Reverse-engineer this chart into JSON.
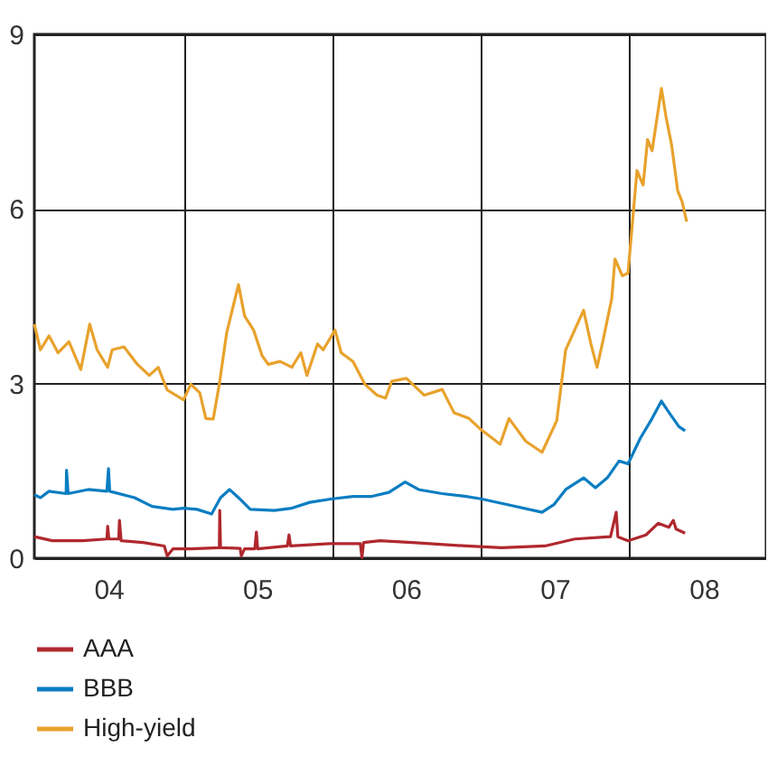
{
  "chart_data": {
    "type": "line",
    "xlim": [
      "2004-01-01",
      "2008-12-01"
    ],
    "xticks": [
      {
        "value": "2004-07-01",
        "label": "04"
      },
      {
        "value": "2005-01-01",
        "label": null
      },
      {
        "value": "2005-07-01",
        "label": "05"
      },
      {
        "value": "2006-01-01",
        "label": null
      },
      {
        "value": "2006-07-01",
        "label": "06"
      },
      {
        "value": "2007-01-01",
        "label": null
      },
      {
        "value": "2007-07-01",
        "label": "07"
      },
      {
        "value": "2008-01-01",
        "label": null
      },
      {
        "value": "2008-07-01",
        "label": "08"
      }
    ],
    "ylim": [
      0,
      9
    ],
    "yticks": [
      0,
      3,
      6,
      9
    ],
    "grid": true,
    "legend": "bottom",
    "series": [
      {
        "name": "AAA",
        "color": "#b0282e",
        "x": [
          "2004-01-01",
          "2004-02-14",
          "2004-04-28",
          "2004-06-27",
          "2004-06-29",
          "2004-07-02",
          "2004-07-26",
          "2004-07-28",
          "2004-08-01",
          "2004-09-24",
          "2004-11-15",
          "2004-11-22",
          "2004-12-06",
          "2005-01-19",
          "2005-03-30",
          "2005-03-31",
          "2005-04-02",
          "2005-05-20",
          "2005-05-23",
          "2005-05-31",
          "2005-06-25",
          "2005-06-29",
          "2005-07-02",
          "2005-09-13",
          "2005-09-17",
          "2005-09-21",
          "2005-12-25",
          "2006-03-11",
          "2006-03-15",
          "2006-03-19",
          "2006-04-28",
          "2006-07-17",
          "2006-11-26",
          "2007-02-21",
          "2007-06-07",
          "2007-08-19",
          "2007-11-15",
          "2007-11-29",
          "2007-12-03",
          "2007-12-28",
          "2008-02-10",
          "2008-03-11",
          "2008-04-06",
          "2008-04-17",
          "2008-04-24",
          "2008-05-16"
        ],
        "values": [
          0.37,
          0.3,
          0.3,
          0.33,
          0.55,
          0.33,
          0.33,
          0.65,
          0.3,
          0.27,
          0.21,
          0.04,
          0.16,
          0.16,
          0.18,
          0.82,
          0.18,
          0.17,
          0.04,
          0.16,
          0.16,
          0.45,
          0.16,
          0.21,
          0.4,
          0.21,
          0.25,
          0.25,
          0.01,
          0.27,
          0.3,
          0.27,
          0.21,
          0.18,
          0.21,
          0.33,
          0.37,
          0.79,
          0.37,
          0.3,
          0.4,
          0.6,
          0.53,
          0.65,
          0.5,
          0.43
        ]
      },
      {
        "name": "BBB",
        "color": "#0a7dc2",
        "x": [
          "2004-01-01",
          "2004-01-16",
          "2004-02-06",
          "2004-03-19",
          "2004-03-20",
          "2004-03-24",
          "2004-05-12",
          "2004-06-27",
          "2004-07-01",
          "2004-07-04",
          "2004-09-03",
          "2004-10-16",
          "2004-12-06",
          "2005-01-01",
          "2005-02-03",
          "2005-03-11",
          "2005-04-02",
          "2005-04-24",
          "2005-05-16",
          "2005-06-14",
          "2005-08-12",
          "2005-09-24",
          "2005-11-07",
          "2006-01-01",
          "2006-02-21",
          "2006-04-06",
          "2006-05-20",
          "2006-06-29",
          "2006-08-01",
          "2006-09-28",
          "2006-11-26",
          "2007-01-01",
          "2007-03-08",
          "2007-05-31",
          "2007-06-29",
          "2007-07-28",
          "2007-09-10",
          "2007-10-09",
          "2007-11-07",
          "2007-12-06",
          "2007-12-28",
          "2008-01-27",
          "2008-02-25",
          "2008-03-19",
          "2008-04-02",
          "2008-04-17",
          "2008-05-01",
          "2008-05-16"
        ],
        "values": [
          1.09,
          1.04,
          1.15,
          1.11,
          1.51,
          1.11,
          1.18,
          1.15,
          1.54,
          1.15,
          1.04,
          0.89,
          0.84,
          0.86,
          0.84,
          0.76,
          1.04,
          1.18,
          1.04,
          0.84,
          0.82,
          0.86,
          0.96,
          1.02,
          1.06,
          1.06,
          1.13,
          1.31,
          1.18,
          1.11,
          1.06,
          1.02,
          0.92,
          0.79,
          0.92,
          1.18,
          1.38,
          1.21,
          1.38,
          1.67,
          1.62,
          2.06,
          2.4,
          2.7,
          2.55,
          2.4,
          2.26,
          2.19
        ]
      },
      {
        "name": "High-yield",
        "color": "#e8a22c",
        "x": [
          "2004-01-01",
          "2004-01-16",
          "2004-02-06",
          "2004-02-28",
          "2004-03-26",
          "2004-04-24",
          "2004-05-16",
          "2004-06-03",
          "2004-06-29",
          "2004-07-10",
          "2004-08-08",
          "2004-09-10",
          "2004-10-09",
          "2004-10-31",
          "2004-11-22",
          "2005-01-01",
          "2005-01-19",
          "2005-02-10",
          "2005-02-25",
          "2005-03-15",
          "2005-03-30",
          "2005-04-17",
          "2005-05-16",
          "2005-05-31",
          "2005-06-22",
          "2005-07-13",
          "2005-07-28",
          "2005-08-26",
          "2005-09-24",
          "2005-10-16",
          "2005-10-31",
          "2005-11-26",
          "2005-12-10",
          "2006-01-08",
          "2006-01-23",
          "2006-02-21",
          "2006-03-22",
          "2006-04-21",
          "2006-05-12",
          "2006-05-27",
          "2006-07-02",
          "2006-08-15",
          "2006-09-28",
          "2006-10-27",
          "2006-12-03",
          "2007-01-01",
          "2007-02-17",
          "2007-03-11",
          "2007-04-21",
          "2007-05-31",
          "2007-07-06",
          "2007-07-28",
          "2007-08-19",
          "2007-09-10",
          "2007-09-28",
          "2007-10-13",
          "2007-10-27",
          "2007-11-18",
          "2007-11-26",
          "2007-12-14",
          "2007-12-28",
          "2008-01-19",
          "2008-02-03",
          "2008-02-14",
          "2008-02-25",
          "2008-03-19",
          "2008-03-30",
          "2008-04-13",
          "2008-04-28",
          "2008-05-09",
          "2008-05-20"
        ],
        "values": [
          4.02,
          3.58,
          3.82,
          3.53,
          3.72,
          3.24,
          4.02,
          3.58,
          3.28,
          3.58,
          3.63,
          3.33,
          3.14,
          3.28,
          2.89,
          2.72,
          2.99,
          2.84,
          2.4,
          2.39,
          2.99,
          3.87,
          4.7,
          4.16,
          3.92,
          3.48,
          3.33,
          3.38,
          3.28,
          3.53,
          3.14,
          3.68,
          3.58,
          3.92,
          3.53,
          3.38,
          2.99,
          2.8,
          2.75,
          3.04,
          3.09,
          2.8,
          2.9,
          2.5,
          2.4,
          2.21,
          1.96,
          2.4,
          2.01,
          1.82,
          2.36,
          3.58,
          3.92,
          4.26,
          3.68,
          3.28,
          3.72,
          4.46,
          5.14,
          4.85,
          4.9,
          6.66,
          6.41,
          7.19,
          7.0,
          8.07,
          7.59,
          7.1,
          6.31,
          6.12,
          5.78
        ]
      }
    ]
  }
}
